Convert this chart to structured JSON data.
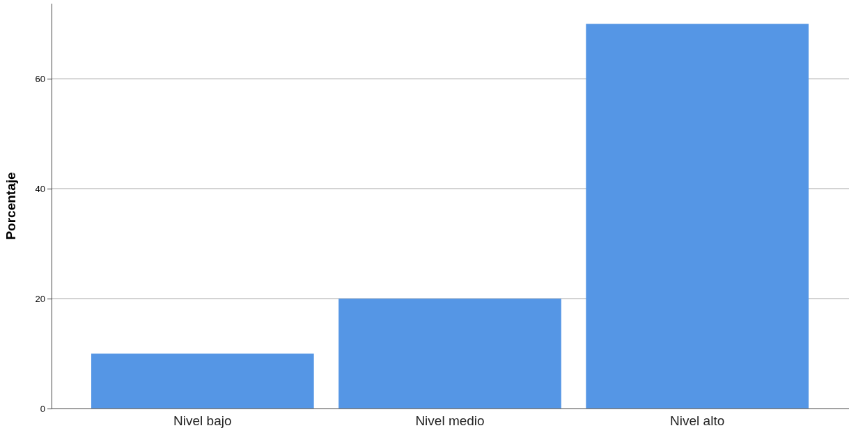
{
  "chart_data": {
    "type": "bar",
    "ylabel": "Porcentaje",
    "categories": [
      "Nivel bajo",
      "Nivel medio",
      "Nivel alto"
    ],
    "values": [
      10,
      20,
      70
    ],
    "color": "#5596e5",
    "ylim": [
      0,
      73.7
    ],
    "yticks": [
      0,
      20,
      40,
      60
    ],
    "grid": "y"
  }
}
